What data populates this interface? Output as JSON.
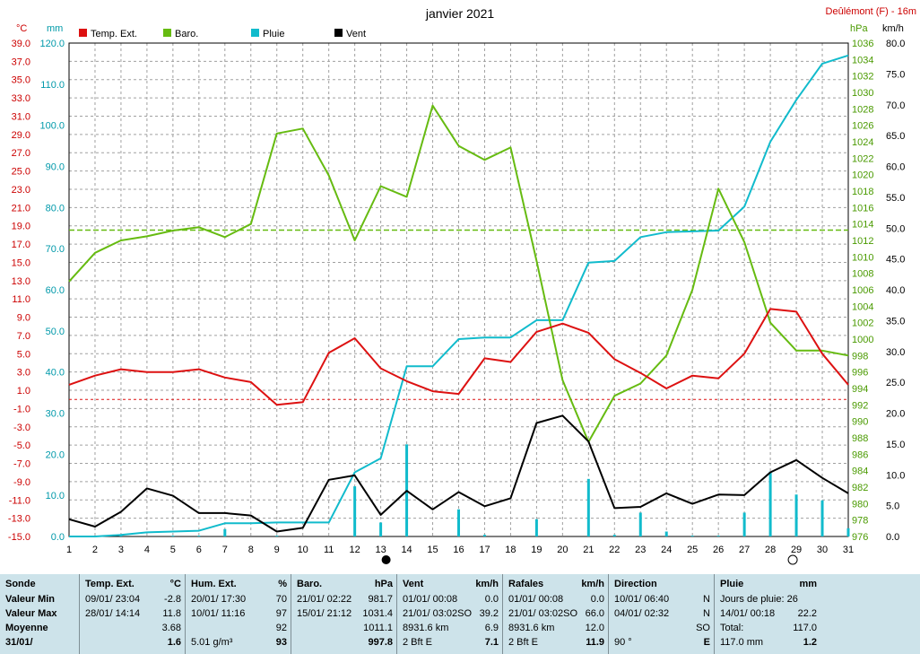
{
  "header": {
    "title": "janvier 2021",
    "station": "Deûlémont (F) - 16m"
  },
  "units": {
    "temp": "°C",
    "rain": "mm",
    "pressure": "hPa",
    "wind": "km/h"
  },
  "colors": {
    "temp": "#dd1111",
    "baro": "#66bb11",
    "rain": "#11bbcc",
    "wind": "#000000",
    "grid": "#a0a0a0"
  },
  "chart_data": {
    "type": "line",
    "title": "janvier 2021",
    "x": [
      1,
      2,
      3,
      4,
      5,
      6,
      7,
      8,
      9,
      10,
      11,
      12,
      13,
      14,
      15,
      16,
      17,
      18,
      19,
      20,
      21,
      22,
      23,
      24,
      25,
      26,
      27,
      28,
      29,
      30,
      31
    ],
    "legend": [
      "Temp. Ext.",
      "Baro.",
      "Pluie",
      "Vent"
    ],
    "axes": {
      "temp": {
        "unit": "°C",
        "ylim": [
          -15.0,
          39.0
        ],
        "ticks": [
          39.0,
          37.0,
          35.0,
          33.0,
          31.0,
          29.0,
          27.0,
          25.0,
          23.0,
          21.0,
          19.0,
          17.0,
          15.0,
          13.0,
          11.0,
          9.0,
          7.0,
          5.0,
          3.0,
          1.0,
          -1.0,
          -3.0,
          -5.0,
          -7.0,
          -9.0,
          -11.0,
          -13.0,
          -15.0
        ]
      },
      "rain": {
        "unit": "mm",
        "ylim": [
          0.0,
          120.0
        ],
        "ticks": [
          120.0,
          110.0,
          100.0,
          90.0,
          80.0,
          70.0,
          60.0,
          50.0,
          40.0,
          30.0,
          20.0,
          10.0,
          0.0
        ]
      },
      "pressure": {
        "unit": "hPa",
        "ylim": [
          976,
          1036
        ],
        "ticks": [
          1036,
          1034,
          1032,
          1030,
          1028,
          1026,
          1024,
          1022,
          1020,
          1018,
          1016,
          1014,
          1012,
          1010,
          1008,
          1006,
          1004,
          1002,
          1000,
          998,
          996,
          994,
          992,
          990,
          988,
          986,
          984,
          982,
          980,
          978,
          976
        ]
      },
      "wind": {
        "unit": "km/h",
        "ylim": [
          0.0,
          80.0
        ],
        "ticks": [
          80.0,
          75.0,
          70.0,
          65.0,
          60.0,
          55.0,
          50.0,
          45.0,
          40.0,
          35.0,
          30.0,
          25.0,
          20.0,
          15.0,
          10.0,
          5.0,
          0.0
        ]
      }
    },
    "series": [
      {
        "name": "Temp. Ext.",
        "axis": "temp",
        "values": [
          1.6,
          2.6,
          3.3,
          3.0,
          3.0,
          3.3,
          2.4,
          1.9,
          -0.6,
          -0.3,
          5.1,
          6.7,
          3.4,
          2.0,
          0.9,
          0.6,
          4.5,
          4.1,
          7.4,
          8.3,
          7.3,
          4.4,
          2.9,
          1.2,
          2.6,
          2.3,
          5.0,
          9.9,
          9.6,
          5.0,
          1.6
        ]
      },
      {
        "name": "Baro.",
        "axis": "pressure",
        "values": [
          1007.0,
          1010.5,
          1012.0,
          1012.5,
          1013.2,
          1013.6,
          1012.4,
          1014.0,
          1025.0,
          1025.6,
          1019.9,
          1012.0,
          1018.6,
          1017.3,
          1028.4,
          1023.5,
          1021.8,
          1023.3,
          1009.5,
          995.0,
          987.5,
          993.1,
          994.6,
          998.0,
          1006.0,
          1018.3,
          1011.8,
          1002.0,
          998.6,
          998.6,
          998.0
        ]
      },
      {
        "name": "Pluie",
        "axis": "rain",
        "values": [
          0.0,
          0.0,
          0.4,
          1.0,
          1.2,
          1.4,
          3.2,
          3.2,
          3.4,
          3.4,
          3.4,
          15.6,
          19.0,
          41.4,
          41.4,
          48.0,
          48.4,
          48.4,
          52.6,
          52.6,
          66.6,
          67.0,
          72.8,
          74.0,
          74.2,
          74.4,
          80.2,
          96.0,
          106.2,
          115.0,
          117.0
        ]
      },
      {
        "name": "Vent",
        "axis": "wind",
        "values": [
          2.8,
          1.6,
          4.0,
          7.8,
          6.6,
          3.8,
          3.8,
          3.4,
          0.8,
          1.4,
          9.2,
          9.9,
          3.5,
          7.4,
          4.4,
          7.2,
          4.9,
          6.2,
          18.4,
          19.6,
          15.4,
          4.6,
          4.8,
          7.0,
          5.3,
          6.8,
          6.7,
          10.4,
          12.4,
          9.5,
          7.0
        ]
      },
      {
        "name": "daily-rain",
        "axis": "rain",
        "values": [
          0,
          0,
          0.4,
          0,
          0.2,
          0.2,
          1.8,
          0,
          0.2,
          0,
          0,
          12.2,
          3.4,
          22.4,
          0,
          6.6,
          0.4,
          0,
          4.2,
          0,
          14.0,
          0.4,
          5.8,
          1.2,
          0.2,
          0.2,
          5.8,
          15.8,
          10.2,
          8.8,
          2.0
        ]
      }
    ],
    "reference_lines": {
      "temp_zero": 0,
      "pressure_standard": 1013.25
    },
    "grid": true,
    "legend_position": "top-left",
    "moon_markers": [
      {
        "day": 13,
        "phase": "new"
      },
      {
        "day": 29,
        "phase": "full"
      }
    ]
  },
  "table": {
    "col0": {
      "h": "Sonde",
      "r1": "Valeur Min",
      "r2": "Valeur Max",
      "r3": "Moyenne",
      "r4": "31/01/"
    },
    "col1": {
      "h": "Temp. Ext.",
      "u": "°C",
      "r1a": "09/01/  23:04",
      "r1b": "-2.8",
      "r2a": "28/01/  14:14",
      "r2b": "11.8",
      "r3b": "3.68",
      "r4b": "1.6"
    },
    "col2": {
      "h": "Hum. Ext.",
      "u": "%",
      "r1a": "20/01/  17:30",
      "r1b": "70",
      "r2a": "10/01/  11:16",
      "r2b": "97",
      "r3b": "92",
      "r4a": "5.01 g/m³",
      "r4b": "93"
    },
    "col3": {
      "h": "Baro.",
      "u": "hPa",
      "r1a": "21/01/  02:22",
      "r1b": "981.7",
      "r2a": "15/01/  21:12",
      "r2b": "1031.4",
      "r3b": "1011.1",
      "r4b": "997.8"
    },
    "col4": {
      "h": "Vent",
      "u": "km/h",
      "r1a": "01/01/  00:08",
      "r1b": "0.0",
      "r2a": "21/01/  03:02SO",
      "r2b": "39.2",
      "r3a": "8931.6 km",
      "r3b": "6.9",
      "r4a": "2 Bft E",
      "r4b": "7.1"
    },
    "col5": {
      "h": "Rafales",
      "u": "km/h",
      "r1a": "01/01/  00:08",
      "r1b": "0.0",
      "r2a": "21/01/  03:02SO",
      "r2b": "66.0",
      "r3a": "8931.6 km",
      "r3b": "12.0",
      "r4a": "2 Bft E",
      "r4b": "11.9"
    },
    "col6": {
      "h": "Direction",
      "r1a": "10/01/  06:40",
      "r1b": "N",
      "r2a": "04/01/  02:32",
      "r2b": "N",
      "r3b": "SO",
      "r4a": "90 °",
      "r4b": "E"
    },
    "col7": {
      "h": "Pluie",
      "u": "mm",
      "r1a": "Jours de pluie: 26",
      "r2a": "14/01/  00:18",
      "r2b": "22.2",
      "r3a": "Total:",
      "r3b": "117.0",
      "r4a": "117.0 mm",
      "r4b": "1.2"
    }
  }
}
